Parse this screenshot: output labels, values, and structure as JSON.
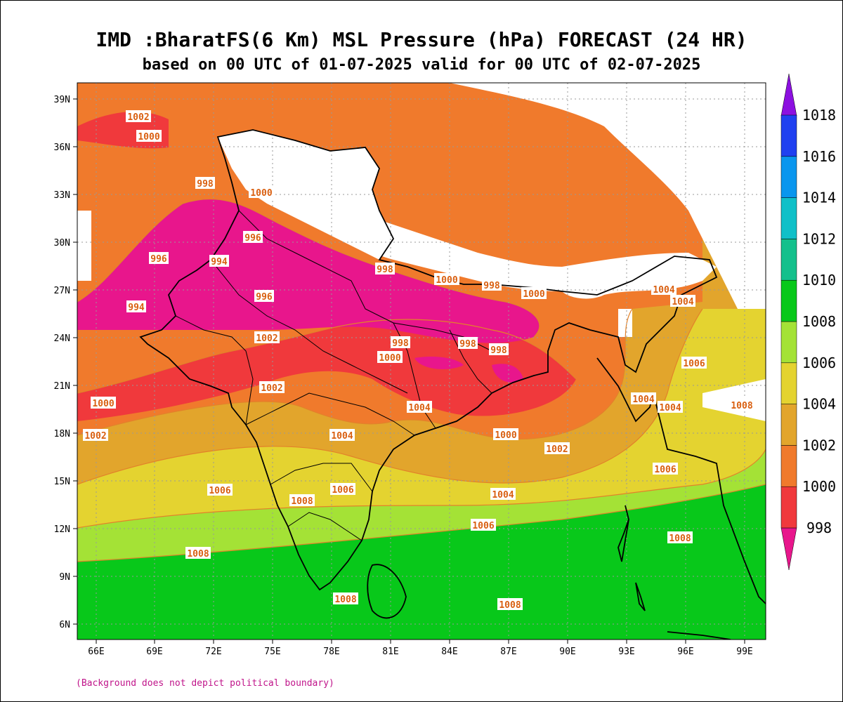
{
  "title": "IMD :BharatFS(6 Km) MSL Pressure (hPa) FORECAST (24 HR)",
  "subtitle": "based on 00 UTC of 01-07-2025 valid for 00 UTC of 02-07-2025",
  "footnote": "(Background does not depict political boundary)",
  "lat_labels": [
    "39N",
    "36N",
    "33N",
    "30N",
    "27N",
    "24N",
    "21N",
    "18N",
    "15N",
    "12N",
    "9N",
    "6N"
  ],
  "lon_labels": [
    "66E",
    "69E",
    "72E",
    "75E",
    "78E",
    "81E",
    "84E",
    "87E",
    "90E",
    "93E",
    "96E",
    "99E"
  ],
  "colorbar": {
    "levels": [
      "998",
      "1000",
      "1002",
      "1004",
      "1006",
      "1008",
      "1010",
      "1012",
      "1014",
      "1016",
      "1018"
    ],
    "colors": [
      "#e8168c",
      "#f0393c",
      "#f07a2c",
      "#e2a52c",
      "#e4d330",
      "#a4e236",
      "#08c81a",
      "#14c08c",
      "#10c0c8",
      "#0a96ee",
      "#2040f0",
      "#8c10e0"
    ]
  },
  "contour_labels": [
    {
      "text": "1002"
    },
    {
      "text": "1000"
    },
    {
      "text": "998"
    },
    {
      "text": "1000"
    },
    {
      "text": "996"
    },
    {
      "text": "994"
    },
    {
      "text": "994"
    },
    {
      "text": "996"
    },
    {
      "text": "996"
    },
    {
      "text": "998"
    },
    {
      "text": "1000"
    },
    {
      "text": "998"
    },
    {
      "text": "1000"
    },
    {
      "text": "1002"
    },
    {
      "text": "998"
    },
    {
      "text": "1000"
    },
    {
      "text": "998"
    },
    {
      "text": "998"
    },
    {
      "text": "1004"
    },
    {
      "text": "1004"
    },
    {
      "text": "1006"
    },
    {
      "text": "1000"
    },
    {
      "text": "1002"
    },
    {
      "text": "1002"
    },
    {
      "text": "1004"
    },
    {
      "text": "1000"
    },
    {
      "text": "1002"
    },
    {
      "text": "1004"
    },
    {
      "text": "1004"
    },
    {
      "text": "1008"
    },
    {
      "text": "1004"
    },
    {
      "text": "1006"
    },
    {
      "text": "1006"
    },
    {
      "text": "1008"
    },
    {
      "text": "1004"
    },
    {
      "text": "1006"
    },
    {
      "text": "1006"
    },
    {
      "text": "1008"
    },
    {
      "text": "1008"
    },
    {
      "text": "1008"
    },
    {
      "text": "1008"
    }
  ],
  "colors": {
    "contour": "#e2822a",
    "boundary": "#000000",
    "land_mask": "#ffffff",
    "grid": "#999999"
  }
}
